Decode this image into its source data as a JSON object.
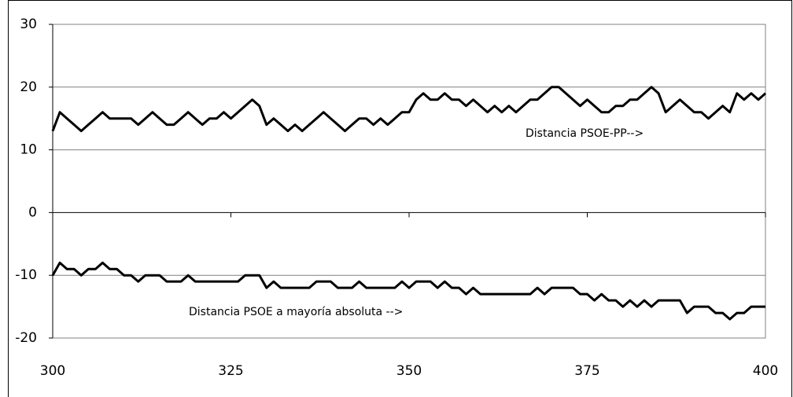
{
  "chart_data": {
    "type": "line",
    "x": [
      300,
      301,
      302,
      303,
      304,
      305,
      306,
      307,
      308,
      309,
      310,
      311,
      312,
      313,
      314,
      315,
      316,
      317,
      318,
      319,
      320,
      321,
      322,
      323,
      324,
      325,
      326,
      327,
      328,
      329,
      330,
      331,
      332,
      333,
      334,
      335,
      336,
      337,
      338,
      339,
      340,
      341,
      342,
      343,
      344,
      345,
      346,
      347,
      348,
      349,
      350,
      351,
      352,
      353,
      354,
      355,
      356,
      357,
      358,
      359,
      360,
      361,
      362,
      363,
      364,
      365,
      366,
      367,
      368,
      369,
      370,
      371,
      372,
      373,
      374,
      375,
      376,
      377,
      378,
      379,
      380,
      381,
      382,
      383,
      384,
      385,
      386,
      387,
      388,
      389,
      390,
      391,
      392,
      393,
      394,
      395,
      396,
      397,
      398,
      399,
      400
    ],
    "series": [
      {
        "color": "#000000",
        "values": [
          13,
          16,
          15,
          14,
          13,
          14,
          15,
          16,
          15,
          15,
          15,
          15,
          14,
          15,
          16,
          15,
          14,
          14,
          15,
          16,
          15,
          14,
          15,
          15,
          16,
          15,
          16,
          17,
          18,
          17,
          14,
          15,
          14,
          13,
          14,
          13,
          14,
          15,
          16,
          15,
          14,
          13,
          14,
          15,
          15,
          14,
          15,
          14,
          15,
          16,
          16,
          18,
          19,
          18,
          18,
          19,
          18,
          18,
          17,
          18,
          17,
          16,
          17,
          16,
          17,
          16,
          17,
          18,
          18,
          19,
          20,
          20,
          19,
          18,
          17,
          18,
          17,
          16,
          16,
          17,
          17,
          18,
          18,
          19,
          20,
          19,
          16,
          17,
          18,
          17,
          16,
          16,
          15,
          16,
          17,
          16,
          19,
          18,
          19,
          18,
          19
        ]
      },
      {
        "color": "#000000",
        "values": [
          -10,
          -8,
          -9,
          -9,
          -10,
          -9,
          -9,
          -8,
          -9,
          -9,
          -10,
          -10,
          -11,
          -10,
          -10,
          -10,
          -11,
          -11,
          -11,
          -10,
          -11,
          -11,
          -11,
          -11,
          -11,
          -11,
          -11,
          -10,
          -10,
          -10,
          -12,
          -11,
          -12,
          -12,
          -12,
          -12,
          -12,
          -11,
          -11,
          -11,
          -12,
          -12,
          -12,
          -11,
          -12,
          -12,
          -12,
          -12,
          -12,
          -11,
          -12,
          -11,
          -11,
          -11,
          -12,
          -11,
          -12,
          -12,
          -13,
          -12,
          -13,
          -13,
          -13,
          -13,
          -13,
          -13,
          -13,
          -13,
          -12,
          -13,
          -12,
          -12,
          -12,
          -12,
          -13,
          -13,
          -14,
          -13,
          -14,
          -14,
          -15,
          -14,
          -15,
          -14,
          -15,
          -14,
          -14,
          -14,
          -14,
          -16,
          -15,
          -15,
          -15,
          -16,
          -16,
          -17,
          -16,
          -16,
          -15,
          -15,
          -15
        ]
      }
    ],
    "annotations": [
      "Distancia PSOE-PP-->",
      "Distancia PSOE a mayoría absoluta -->"
    ],
    "xlim": [
      300,
      400
    ],
    "xticks": [
      300,
      325,
      350,
      375,
      400
    ],
    "ylim": [
      -20,
      30
    ],
    "yticks": [
      -20,
      -10,
      0,
      10,
      20,
      30
    ],
    "grid": true
  }
}
